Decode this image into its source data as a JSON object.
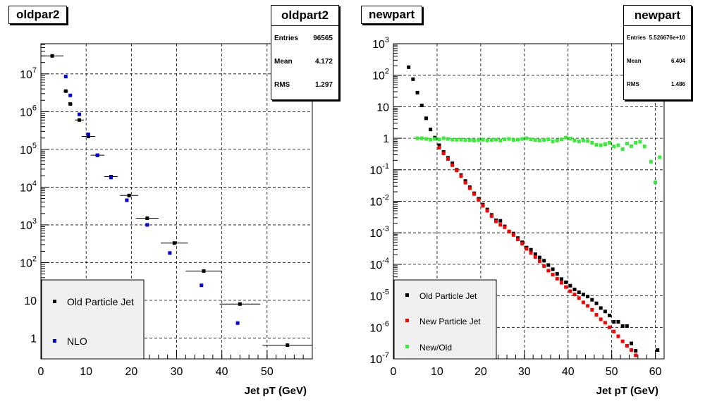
{
  "chart_data": [
    {
      "type": "scatter",
      "title": "oldpar2",
      "xlabel": "Jet pT (GeV)",
      "ylabel": "",
      "xlim": [
        0,
        60
      ],
      "ylim_log10": [
        -0.55,
        7.8
      ],
      "log_y": true,
      "grid": true,
      "x_ticks": [
        "0",
        "10",
        "20",
        "30",
        "40",
        "50"
      ],
      "y_ticks": [
        {
          "base": "1",
          "exp": ""
        },
        {
          "base": "10",
          "exp": ""
        },
        {
          "base": "10",
          "exp": "2"
        },
        {
          "base": "10",
          "exp": "3"
        },
        {
          "base": "10",
          "exp": "4"
        },
        {
          "base": "10",
          "exp": "5"
        },
        {
          "base": "10",
          "exp": "6"
        },
        {
          "base": "10",
          "exp": "7"
        }
      ],
      "legend_placement": "bottom-left",
      "stats": {
        "title": "oldpart2",
        "entries_label": "Entries",
        "entries": "96565",
        "mean_label": "Mean",
        "mean": "4.172",
        "rms_label": "RMS",
        "rms": "1.297"
      },
      "series": [
        {
          "name": "Old Particle Jet",
          "color": "#000000",
          "points": [
            {
              "x": 2.5,
              "y": 30000000.0,
              "xerr": 2.5
            },
            {
              "x": 5.5,
              "y": 3500000.0,
              "xerr": 0.5
            },
            {
              "x": 6.5,
              "y": 1600000.0,
              "xerr": 0.5
            },
            {
              "x": 8.5,
              "y": 600000.0,
              "xerr": 1.0
            },
            {
              "x": 10.5,
              "y": 220000.0,
              "xerr": 1.5
            },
            {
              "x": 12.5,
              "y": 70000.0,
              "xerr": 1.5
            },
            {
              "x": 15.5,
              "y": 19000.0,
              "xerr": 1.5
            },
            {
              "x": 19.5,
              "y": 6000.0,
              "xerr": 2.0
            },
            {
              "x": 23.5,
              "y": 1500.0,
              "xerr": 2.5
            },
            {
              "x": 29.5,
              "y": 330,
              "xerr": 3.0
            },
            {
              "x": 36.0,
              "y": 60,
              "xerr": 4.0
            },
            {
              "x": 44.0,
              "y": 8,
              "xerr": 4.5
            },
            {
              "x": 54.5,
              "y": 0.65,
              "xerr": 5.5
            }
          ]
        },
        {
          "name": "NLO",
          "color": "#0000dd",
          "points": [
            {
              "x": 5.5,
              "y": 8500000.0
            },
            {
              "x": 6.5,
              "y": 2700000.0
            },
            {
              "x": 8.5,
              "y": 850000.0
            },
            {
              "x": 10.5,
              "y": 250000.0
            },
            {
              "x": 12.5,
              "y": 70000.0
            },
            {
              "x": 15.5,
              "y": 18000.0
            },
            {
              "x": 19.0,
              "y": 4500.0
            },
            {
              "x": 23.5,
              "y": 1000.0
            },
            {
              "x": 28.5,
              "y": 180
            },
            {
              "x": 35.5,
              "y": 25
            },
            {
              "x": 43.5,
              "y": 2.5
            }
          ]
        }
      ]
    },
    {
      "type": "scatter",
      "title": "newpart",
      "xlabel": "Jet pT (GeV)",
      "ylabel": "",
      "xlim": [
        0,
        62
      ],
      "ylim_log10": [
        -7,
        3
      ],
      "log_y": true,
      "grid": true,
      "x_ticks": [
        "0",
        "10",
        "20",
        "30",
        "40",
        "50",
        "60"
      ],
      "y_ticks": [
        {
          "base": "10",
          "exp": "3"
        },
        {
          "base": "10",
          "exp": "2"
        },
        {
          "base": "10",
          "exp": ""
        },
        {
          "base": "1",
          "exp": ""
        },
        {
          "base": "10",
          "exp": "-1"
        },
        {
          "base": "10",
          "exp": "-2"
        },
        {
          "base": "10",
          "exp": "-3"
        },
        {
          "base": "10",
          "exp": "-4"
        },
        {
          "base": "10",
          "exp": "-5"
        },
        {
          "base": "10",
          "exp": "-6"
        },
        {
          "base": "10",
          "exp": "-7"
        }
      ],
      "legend_placement": "bottom-left",
      "stats": {
        "title": "newpart",
        "entries_label": "Entries",
        "entries": "5.526676e+10",
        "mean_label": "Mean",
        "mean": "6.404",
        "rms_label": "RMS",
        "rms": "1.486"
      },
      "series": [
        {
          "name": "Old Particle Jet",
          "color": "#000000",
          "x": [
            3.5,
            4.5,
            5.5,
            6.5,
            7.5,
            8.5,
            9.5,
            10.5,
            11.5,
            12.5,
            13.5,
            14.5,
            15.5,
            16.5,
            17.5,
            18.5,
            19.5,
            20.5,
            21.5,
            22.5,
            23.5,
            24.5,
            25.5,
            26.5,
            27.5,
            28.5,
            29.5,
            30.5,
            31.5,
            32.5,
            33.5,
            34.5,
            35.5,
            36.5,
            37.5,
            38.5,
            39.5,
            40.5,
            41.5,
            42.5,
            43.5,
            44.5,
            45.5,
            46.5,
            47.5,
            48.5,
            49.5,
            50.5,
            51.5,
            52.5,
            53.5,
            54.5,
            55.5,
            60.5
          ],
          "y": [
            180,
            75,
            28,
            11,
            4.3,
            1.9,
            1.05,
            0.6,
            0.37,
            0.24,
            0.16,
            0.1,
            0.068,
            0.044,
            0.028,
            0.018,
            0.012,
            0.0079,
            0.0055,
            0.0037,
            0.0025,
            0.0024,
            0.0016,
            0.0011,
            0.00095,
            0.00068,
            0.0005,
            0.00034,
            0.00029,
            0.00021,
            0.000165,
            0.00013,
            9.5e-05,
            7e-05,
            5e-05,
            3.4e-05,
            2.7e-05,
            2.1e-05,
            1.6e-05,
            1.3e-05,
            1.1e-05,
            9.5e-06,
            7.5e-06,
            5.8e-06,
            4.1e-06,
            3.2e-06,
            2.4e-06,
            1.5e-06,
            1.5e-06,
            1.1e-06,
            1.1e-06,
            3.1e-07,
            1.8e-07,
            1.9e-07
          ]
        },
        {
          "name": "New Particle Jet",
          "color": "#ff0000",
          "x": [
            10.5,
            11.5,
            12.5,
            13.5,
            14.5,
            15.5,
            16.5,
            17.5,
            18.5,
            19.5,
            20.5,
            21.5,
            22.5,
            23.5,
            24.5,
            25.5,
            26.5,
            27.5,
            28.5,
            29.5,
            30.5,
            31.5,
            32.5,
            33.5,
            34.5,
            35.5,
            36.5,
            37.5,
            38.5,
            39.5,
            40.5,
            41.5,
            42.5,
            43.5,
            44.5,
            45.5,
            46.5,
            47.5,
            48.5,
            49.5,
            50.5,
            51.5,
            52.5,
            53.5,
            54.5,
            55.5
          ],
          "y": [
            0.5,
            0.33,
            0.22,
            0.14,
            0.095,
            0.063,
            0.039,
            0.026,
            0.017,
            0.011,
            0.0072,
            0.005,
            0.0034,
            0.0023,
            0.0018,
            0.0015,
            0.0011,
            0.00085,
            0.00062,
            0.00045,
            0.00031,
            0.00023,
            0.00017,
            0.000125,
            8.8e-05,
            6.3e-05,
            4.7e-05,
            3.5e-05,
            2.6e-05,
            1.9e-05,
            1.4e-05,
            1.1e-05,
            8.5e-06,
            6.2e-06,
            4.8e-06,
            3.6e-06,
            2.5e-06,
            1.8e-06,
            1.4e-06,
            1e-06,
            7.4e-07,
            5.2e-07,
            3.6e-07,
            2.6e-07,
            1.9e-07,
            1.3e-07
          ]
        },
        {
          "name": "New/Old",
          "color": "#33ee33",
          "x": [
            5.5,
            6.5,
            7.5,
            8.5,
            9.5,
            10.5,
            11.5,
            12.5,
            13.5,
            14.5,
            15.5,
            16.5,
            17.5,
            18.5,
            19.5,
            20.5,
            21.5,
            22.5,
            23.5,
            24.5,
            25.5,
            26.5,
            27.5,
            28.5,
            29.5,
            30.5,
            31.5,
            32.5,
            33.5,
            34.5,
            35.5,
            36.5,
            37.5,
            38.5,
            39.5,
            40.5,
            41.5,
            42.5,
            43.5,
            44.5,
            45.5,
            46.5,
            47.5,
            48.5,
            49.5,
            50.5,
            51.5,
            52.5,
            53.5,
            54.5,
            55.5,
            56.5,
            57.5,
            59.0,
            60.0,
            61.0
          ],
          "y": [
            1.0,
            1.0,
            0.95,
            0.9,
            0.95,
            0.92,
            1.0,
            0.95,
            0.9,
            0.9,
            0.9,
            0.88,
            0.87,
            0.85,
            0.88,
            0.9,
            0.85,
            0.88,
            0.9,
            0.85,
            0.92,
            0.95,
            0.88,
            0.9,
            0.95,
            1.0,
            0.92,
            0.88,
            0.85,
            0.88,
            0.92,
            0.8,
            0.85,
            0.92,
            1.05,
            0.98,
            0.85,
            0.8,
            0.85,
            0.82,
            0.72,
            0.62,
            0.6,
            0.65,
            0.72,
            0.55,
            0.6,
            0.45,
            0.68,
            0.56,
            0.72,
            0.78,
            0.55,
            0.18,
            0.04,
            0.25
          ]
        }
      ]
    }
  ]
}
